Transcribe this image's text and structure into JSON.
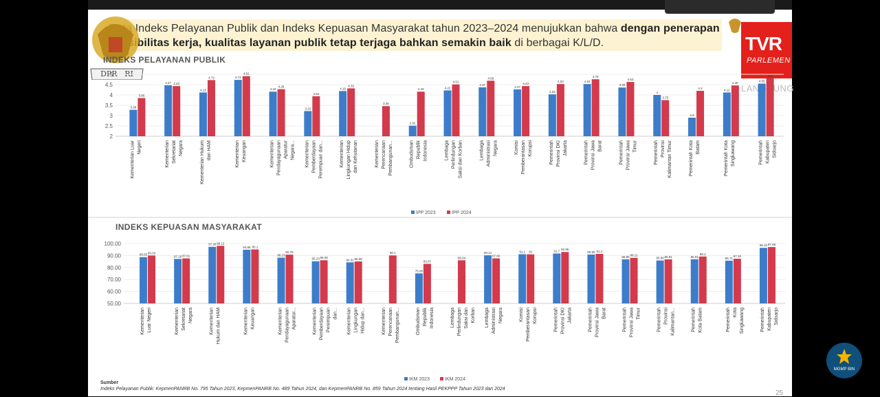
{
  "banner": {
    "text_normal_1": "Data Indeks Pelayanan Publik dan Indeks Kepuasan Masyarakat tahun 2023–2024 menujukkan bahwa ",
    "text_bold_1": "dengan penerapan fleksibilitas kerja, kualitas layanan publik tetap terjaga bahkan semakin baik",
    "text_normal_2": " di berbagai K/L/D."
  },
  "emblem_text": "DPR - RI",
  "tv_logo": {
    "main": "TVR",
    "sub": "PARLEMEN",
    "live": "LANGSUNG"
  },
  "bottom_logo": "MGMP BIN",
  "page_number": "25",
  "source": {
    "heading": "Sumber",
    "line1": "Indeks Pelayanan Publik: KepmenPANRB No. 795 Tahun 2023, KepmenPANRB No. 489 Tahun 2024, dan KepmenPANRB No. 859 Tahun 2024 tentang Hasil PEKPPP Tahun 2023 dan 2024"
  },
  "colors": {
    "blue": "#3d7cc9",
    "red": "#d33a4c"
  },
  "chart_data": [
    {
      "type": "bar",
      "title": "INDEKS PELAYANAN PUBLIK",
      "categories": [
        "Kementerian Luar Negeri",
        "Kementerian Sekretariat Negara",
        "Kementerian Hukum dan HAM",
        "Kementerian Keuangan",
        "Kementerian Pendayagunaan Aparatur Negara...",
        "Kementerian Pemberdayaan Perempuan dan...",
        "Kementerian Lingkungan Hidup dan Kehutanan",
        "Kementerian Perencanaan Pembangunan...",
        "Ombudsman Republik Indonesia",
        "Lembaga Perlindungan Saksi dan Korban",
        "Lembaga Administrasi Negara",
        "Komisi Pemberantasan Korupsi",
        "Pemerintah Provinsi DKI Jakarta",
        "Pemerintah Provinsi Jawa Barat",
        "Pemerintah Provinsi Jawa Timur",
        "Pemerintah Provinsi Kalimantan Timur",
        "Pemerintah Kota Batam",
        "Pemerintah Kota Singkawang",
        "Pemerintah Kabupaten Sidoarjo"
      ],
      "series": [
        {
          "name": "IPP 2023",
          "values": [
            3.28,
            4.47,
            4.12,
            4.73,
            4.16,
            3.22,
            4.19,
            null,
            2.51,
            4.22,
            4.37,
            4.27,
            4.03,
            4.53,
            4.36,
            4,
            2.9,
            4.12,
            4.55
          ]
        },
        {
          "name": "IPP 2024",
          "values": [
            3.85,
            4.43,
            4.72,
            4.91,
            4.28,
            3.94,
            4.32,
            3.46,
            4.16,
            4.51,
            4.69,
            4.43,
            4.53,
            4.76,
            4.63,
            3.75,
            4.2,
            4.46,
            4.8
          ]
        }
      ],
      "yticks": [
        "2",
        "2.5",
        "3",
        "3.5",
        "4",
        "4.5",
        "5"
      ],
      "ylim": [
        2,
        5
      ]
    },
    {
      "type": "bar",
      "title": "INDEKS KEPUASAN MASYARAKAT",
      "categories": [
        "Kementerian Luar Negeri",
        "Kementerian Sekretariat Negara",
        "Kementerian Hukum dan HAM",
        "Kementerian Keuangan",
        "Kementerian Pendayagunaan Aparatur...",
        "Kementerian Pemberdayaan Perempuan dan...",
        "Kementerian Lingkungan Hidup dan...",
        "Kementerian Perencanaan Pembangunan...",
        "Ombudsman Republik Indonesia",
        "Lembaga Perlindungan Saksi dan Korban",
        "Lembaga Administrasi Negara",
        "Komisi Pemberantasan Korupsi",
        "Pemerintah Provinsi DKI Jakarta",
        "Pemerintah Provinsi Jawa Barat",
        "Pemerintah Provinsi Jawa Timur",
        "Pemerintah Provinsi Kalimantan...",
        "Pemerintah Kota Batam",
        "Pemerintah Kota Singkawang",
        "Pemerintah Kabupaten Sidoarjo"
      ],
      "series": [
        {
          "name": "IKM 2023",
          "values": [
            88.65,
            87.16,
            97.28,
            94.86,
            88.23,
            85.23,
            84.31,
            null,
            75.08,
            null,
            90.21,
            91.1,
            91.7,
            90.85,
            86.85,
            85.86,
            86.91,
            85.71,
            96.42
          ]
        },
        {
          "name": "IKM 2024",
          "values": [
            90.03,
            87.61,
            98.12,
            95.1,
            90.75,
            86.08,
            85.08,
            90.1,
            83.07,
            86.04,
            87.66,
            91,
            92.96,
            91.4,
            88.11,
            86.81,
            89.2,
            87.33,
            97.09
          ]
        }
      ],
      "yticks": [
        "50.00",
        "60.00",
        "70.00",
        "80.00",
        "90.00",
        "100.00"
      ],
      "ylim": [
        50,
        100
      ]
    }
  ]
}
